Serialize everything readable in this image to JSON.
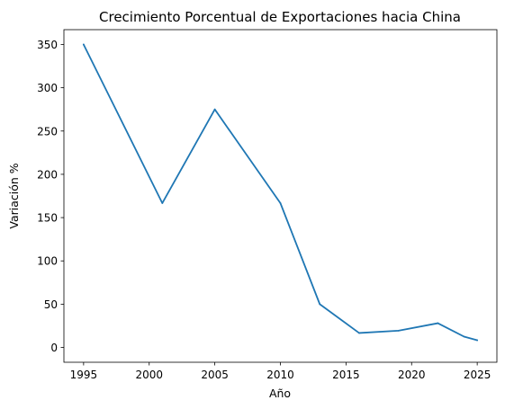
{
  "chart_data": {
    "type": "line",
    "title": "Crecimiento Porcentual de Exportaciones hacia China",
    "xlabel": "Año",
    "ylabel": "Variación %",
    "xlim": [
      1993.5,
      2026.5
    ],
    "ylim": [
      -17.1,
      367.1
    ],
    "xticks": [
      1995,
      2000,
      2005,
      2010,
      2015,
      2020,
      2025
    ],
    "yticks": [
      0,
      50,
      100,
      150,
      200,
      250,
      300,
      350
    ],
    "grid": false,
    "legend": "none",
    "series": [
      {
        "color": "#1f77b4",
        "x": [
          1995,
          2001,
          2005,
          2010,
          2013,
          2016,
          2019,
          2022,
          2024,
          2025
        ],
        "y": [
          350,
          166.7,
          275,
          166.7,
          50,
          16.7,
          19.4,
          28,
          12.5,
          8.3
        ]
      }
    ]
  }
}
